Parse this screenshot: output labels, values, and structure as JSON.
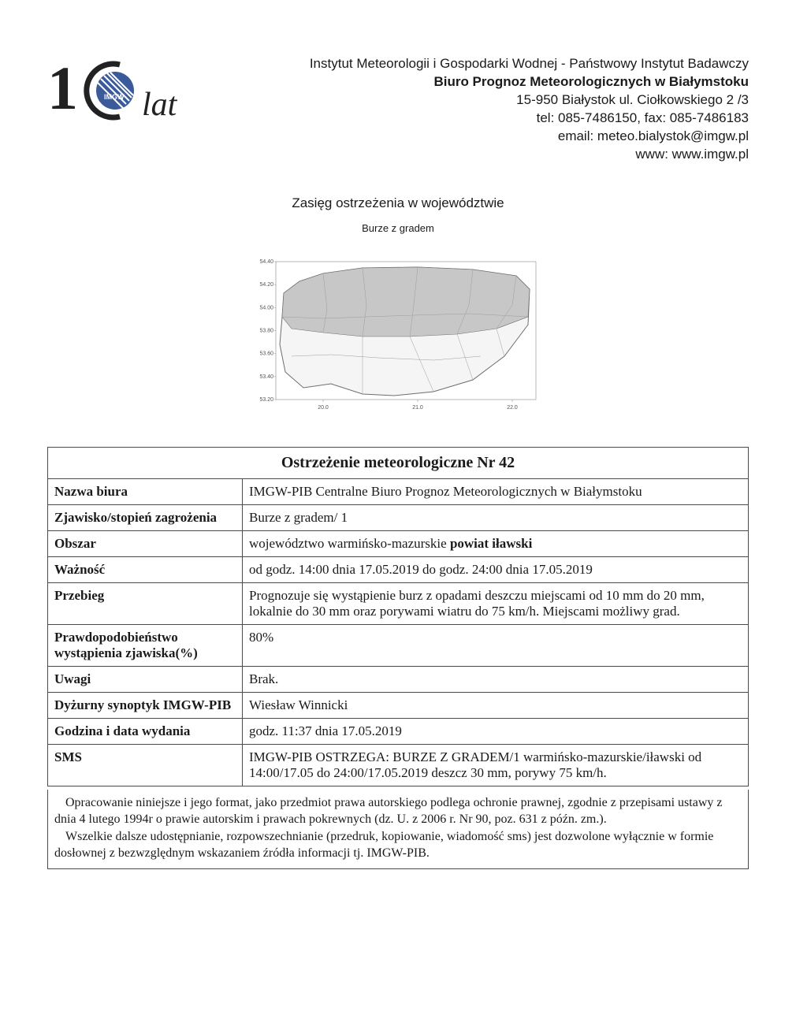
{
  "header": {
    "org_line1": "Instytut Meteorologii i Gospodarki Wodnej - Państwowy Instytut Badawczy",
    "org_line2": "Biuro Prognoz Meteorologicznych w Białymstoku",
    "address": "15-950 Białystok ul. Ciołkowskiego 2 /3",
    "tel_fax": "tel: 085-7486150, fax: 085-7486183",
    "email": "email: meteo.bialystok@imgw.pl",
    "www": "www: www.imgw.pl",
    "logo_text_1": "1",
    "logo_text_gw": "IMGW",
    "logo_text_lat": "lat"
  },
  "title": {
    "main": "Zasięg ostrzeżenia w województwie",
    "sub": "Burze z gradem"
  },
  "map": {
    "y_ticks": [
      "54.40",
      "54.20",
      "54.00",
      "53.80",
      "53.60",
      "53.40",
      "53.20"
    ],
    "x_ticks": [
      "20.0",
      "21.0",
      "22.0"
    ],
    "outline_color": "#6e6e6e",
    "highlight_fill": "#c7c7c7",
    "base_fill": "#f5f5f5",
    "grid_color": "#dddddd",
    "border_color": "#888888"
  },
  "table": {
    "caption": "Ostrzeżenie meteorologiczne Nr 42",
    "rows": [
      {
        "label": "Nazwa biura",
        "value": "IMGW-PIB Centralne Biuro Prognoz Meteorologicznych w Białymstoku"
      },
      {
        "label": "Zjawisko/stopień zagrożenia",
        "value": "Burze z gradem/ 1"
      },
      {
        "label": "Obszar",
        "value_html": "województwo warmińsko-mazurskie <b>powiat iławski</b>"
      },
      {
        "label": "Ważność",
        "value": "od godz. 14:00 dnia 17.05.2019 do godz. 24:00 dnia 17.05.2019"
      },
      {
        "label": "Przebieg",
        "value": "Prognozuje się wystąpienie burz z opadami deszczu miejscami od 10 mm do 20 mm, lokalnie do 30 mm oraz porywami wiatru do 75 km/h. Miejscami możliwy grad."
      },
      {
        "label": "Prawdopodobieństwo wystąpienia zjawiska(%)",
        "value": "80%"
      },
      {
        "label": "Uwagi",
        "value": "Brak."
      },
      {
        "label": "Dyżurny synoptyk IMGW-PIB",
        "value": "Wiesław Winnicki"
      },
      {
        "label": "Godzina i data wydania",
        "value": "godz. 11:37 dnia 17.05.2019"
      },
      {
        "label": "SMS",
        "value": "IMGW-PIB OSTRZEGA: BURZE Z GRADEM/1 warmińsko-mazurskie/iławski od 14:00/17.05 do 24:00/17.05.2019 deszcz 30 mm, porywy 75 km/h."
      }
    ]
  },
  "footnote": {
    "p1": "Opracowanie niniejsze i jego format, jako przedmiot prawa autorskiego podlega ochronie prawnej, zgodnie z przepisami ustawy z dnia 4 lutego 1994r o prawie autorskim i prawach pokrewnych (dz. U. z 2006 r. Nr 90, poz. 631 z późn. zm.).",
    "p2": "Wszelkie dalsze udostępnianie, rozpowszechnianie (przedruk, kopiowanie, wiadomość sms) jest dozwolone wyłącznie w formie dosłownej z bezwzględnym wskazaniem źródła informacji tj. IMGW-PIB."
  },
  "style": {
    "page_bg": "#ffffff",
    "text_color": "#1a1a1a",
    "table_border": "#4a4a4a",
    "body_font": "Times New Roman",
    "header_font": "Arial",
    "base_fontsize_pt": 12
  }
}
